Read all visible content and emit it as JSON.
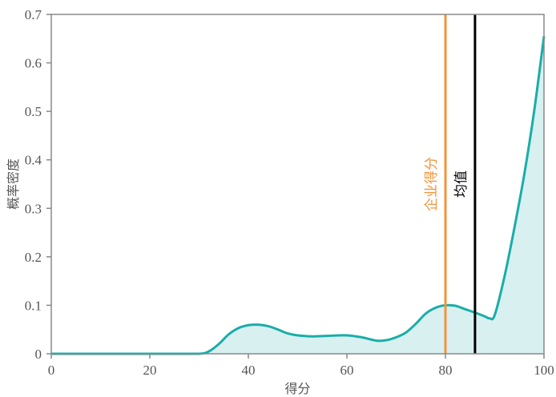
{
  "chart_data": {
    "type": "area",
    "title": "",
    "xlabel": "得分",
    "ylabel": "概率密度",
    "xlim": [
      0,
      100
    ],
    "ylim": [
      0,
      0.7
    ],
    "xticks": [
      0,
      20,
      40,
      60,
      80,
      100
    ],
    "xtick_labels": [
      "0",
      "20",
      "40",
      "60",
      "80",
      "100"
    ],
    "yticks": [
      0,
      0.1,
      0.2,
      0.3,
      0.4,
      0.5,
      0.6,
      0.7
    ],
    "ytick_labels": [
      "0",
      "0.1",
      "0.2",
      "0.3",
      "0.4",
      "0.5",
      "0.6",
      "0.7"
    ],
    "grid": false,
    "series": [
      {
        "color": "#1aada8",
        "fill_color": "#d8f0f0",
        "x": [
          0,
          10,
          20,
          25,
          30,
          32,
          34,
          36,
          38,
          40,
          42,
          44,
          46,
          48,
          50,
          53,
          56,
          60,
          63,
          66,
          68,
          70,
          72,
          74,
          76,
          78,
          80,
          82,
          84,
          86,
          88,
          89,
          90,
          92,
          94,
          96,
          98,
          100
        ],
        "y": [
          0,
          0,
          0,
          0,
          0,
          0.005,
          0.02,
          0.04,
          0.053,
          0.059,
          0.06,
          0.057,
          0.05,
          0.042,
          0.038,
          0.036,
          0.037,
          0.038,
          0.034,
          0.027,
          0.028,
          0.034,
          0.044,
          0.062,
          0.083,
          0.095,
          0.1,
          0.099,
          0.092,
          0.085,
          0.077,
          0.073,
          0.08,
          0.16,
          0.26,
          0.37,
          0.5,
          0.655
        ]
      }
    ],
    "reference_lines": [
      {
        "x": 80,
        "label": "企业得分",
        "color": "#f0943a"
      },
      {
        "x": 86,
        "label": "均值",
        "color": "#000000"
      }
    ]
  }
}
